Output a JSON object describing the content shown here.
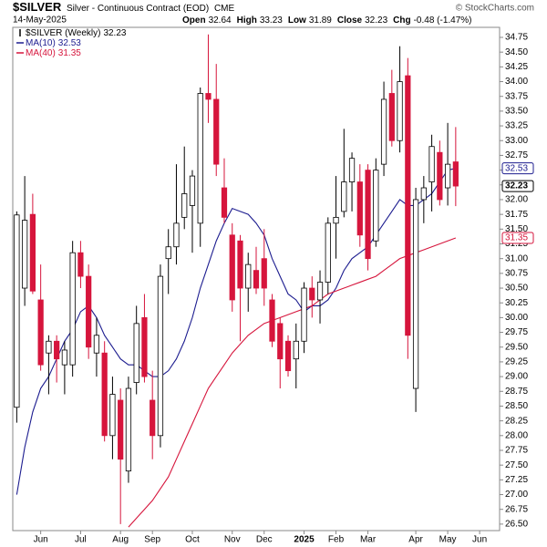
{
  "chart_data": {
    "type": "candlestick",
    "title": "$SILVER",
    "subtitle": "Silver - Continuous Contract (EOD)",
    "exchange": "CME",
    "date": "14-May-2025",
    "credit": "© StockCharts.com",
    "stats": [
      {
        "label": "Open",
        "value": "32.64"
      },
      {
        "label": "High",
        "value": "33.23"
      },
      {
        "label": "Low",
        "value": "31.89"
      },
      {
        "label": "Close",
        "value": "32.23"
      },
      {
        "label": "Chg",
        "value": "-0.48 (-1.47%)"
      }
    ],
    "categories": [
      null,
      null,
      null,
      "Jun",
      null,
      null,
      null,
      null,
      "Jul",
      null,
      null,
      null,
      null,
      "Aug",
      null,
      null,
      null,
      "Sep",
      null,
      null,
      null,
      null,
      "Oct",
      null,
      null,
      null,
      null,
      "Nov",
      null,
      null,
      null,
      "Dec",
      null,
      null,
      null,
      null,
      "2025",
      null,
      null,
      null,
      "Feb",
      null,
      null,
      null,
      "Mar",
      null,
      null,
      null,
      null,
      null,
      "Apr",
      null,
      null,
      null,
      "May",
      null,
      null,
      null,
      "Jun",
      null,
      null
    ],
    "ohlc": {
      "name": "$SILVER (Weekly)",
      "last": 32.23,
      "up_color": "#ffffff",
      "down_color": "#d6153c",
      "open": [
        28.48,
        30.5,
        31.75,
        30.3,
        29.4,
        29.6,
        29.2,
        29.2,
        31.1,
        30.7,
        29.4,
        29.4,
        28.0,
        28.6,
        27.4,
        28.9,
        30.0,
        28.6,
        28.0,
        31.0,
        31.2,
        31.7,
        31.9,
        31.6,
        33.8,
        33.7,
        32.2,
        31.4,
        31.3,
        30.5,
        30.8,
        31.0,
        30.3,
        29.9,
        29.6,
        29.3,
        29.6,
        30.5,
        30.3,
        30.6,
        31.6,
        31.8,
        32.3,
        32.3,
        32.5,
        31.3,
        32.6,
        33.8,
        33.0,
        34.1,
        28.8,
        32.0,
        32.3,
        32.8,
        32.2,
        32.64,
        null,
        null,
        null,
        null,
        null
      ],
      "high": [
        31.8,
        32.4,
        32.1,
        30.9,
        29.7,
        29.7,
        29.6,
        31.3,
        31.3,
        30.9,
        30.0,
        29.6,
        29.0,
        28.8,
        29.0,
        30.2,
        30.4,
        29.1,
        30.9,
        31.5,
        32.6,
        32.9,
        32.5,
        33.9,
        34.8,
        34.3,
        32.7,
        31.6,
        31.4,
        31.1,
        31.2,
        31.5,
        30.4,
        30.0,
        29.7,
        29.9,
        30.6,
        30.7,
        30.8,
        31.7,
        32.4,
        33.2,
        32.8,
        32.6,
        32.6,
        32.7,
        34.0,
        34.2,
        34.6,
        34.4,
        32.2,
        32.4,
        33.1,
        33.0,
        33.3,
        33.23,
        null,
        null,
        null,
        null,
        null
      ],
      "low": [
        28.22,
        30.2,
        30.4,
        29.1,
        28.7,
        28.9,
        28.7,
        29.0,
        30.5,
        29.3,
        29.0,
        27.9,
        27.6,
        26.5,
        27.2,
        28.7,
        28.9,
        27.6,
        27.8,
        30.4,
        30.9,
        31.5,
        31.1,
        31.2,
        33.3,
        32.4,
        31.6,
        30.1,
        29.6,
        30.1,
        30.4,
        30.2,
        29.5,
        28.8,
        29.0,
        28.8,
        29.4,
        30.0,
        29.9,
        30.4,
        31.0,
        31.7,
        31.8,
        31.2,
        30.8,
        31.2,
        32.4,
        32.9,
        32.8,
        29.3,
        28.4,
        31.6,
        31.8,
        31.9,
        31.9,
        31.89,
        null,
        null,
        null,
        null,
        null
      ],
      "close": [
        31.74,
        31.65,
        30.45,
        29.2,
        29.6,
        29.3,
        29.45,
        31.1,
        30.7,
        29.5,
        29.7,
        28.0,
        28.7,
        27.6,
        28.8,
        29.9,
        29.0,
        28.0,
        30.7,
        31.2,
        31.6,
        32.1,
        32.4,
        33.8,
        33.7,
        32.6,
        31.7,
        30.3,
        30.5,
        30.9,
        30.5,
        30.5,
        29.6,
        29.3,
        29.1,
        29.6,
        30.5,
        30.3,
        30.6,
        31.6,
        31.7,
        32.3,
        32.7,
        31.4,
        31.0,
        32.5,
        33.7,
        33.0,
        34.0,
        29.7,
        32.0,
        32.2,
        32.9,
        32.0,
        32.6,
        32.23,
        null,
        null,
        null,
        null,
        null
      ]
    },
    "series": [
      {
        "name": "MA(10)",
        "color": "#1c1c8f",
        "last": 32.53,
        "values": [
          27.0,
          27.8,
          28.4,
          28.8,
          29.0,
          29.3,
          29.6,
          29.8,
          30.1,
          30.2,
          30.0,
          29.7,
          29.5,
          29.3,
          29.2,
          29.2,
          29.1,
          29.0,
          29.0,
          29.1,
          29.3,
          29.6,
          30.0,
          30.5,
          30.9,
          31.3,
          31.6,
          31.85,
          31.8,
          31.75,
          31.6,
          31.4,
          31.0,
          30.7,
          30.4,
          30.3,
          30.1,
          30.2,
          30.2,
          30.3,
          30.5,
          30.8,
          31.0,
          31.1,
          31.2,
          31.4,
          31.6,
          31.8,
          32.0,
          31.9,
          31.9,
          32.0,
          32.1,
          32.3,
          32.5,
          32.53,
          null,
          null,
          null,
          null,
          null
        ]
      },
      {
        "name": "MA(40)",
        "color": "#d6153c",
        "last": 31.35,
        "values": [
          null,
          null,
          null,
          null,
          null,
          null,
          null,
          null,
          null,
          null,
          null,
          null,
          null,
          null,
          26.45,
          26.6,
          26.75,
          26.9,
          27.1,
          27.3,
          27.6,
          27.9,
          28.2,
          28.5,
          28.8,
          29.0,
          29.2,
          29.4,
          29.55,
          29.7,
          29.8,
          29.9,
          29.95,
          30.0,
          30.05,
          30.1,
          30.15,
          30.2,
          30.3,
          30.4,
          30.45,
          30.5,
          30.55,
          30.6,
          30.65,
          30.7,
          30.8,
          30.9,
          31.0,
          31.05,
          31.1,
          31.15,
          31.2,
          31.25,
          31.3,
          31.35,
          null,
          null,
          null,
          null,
          null
        ]
      }
    ],
    "ylim": [
      26.39,
      34.92
    ],
    "yticks": [
      {
        "value": 26.5,
        "label": "26.50"
      },
      {
        "value": 26.75,
        "label": "26.75"
      },
      {
        "value": 27,
        "label": "27.00"
      },
      {
        "value": 27.25,
        "label": "27.25"
      },
      {
        "value": 27.5,
        "label": "27.50"
      },
      {
        "value": 27.75,
        "label": "27.75"
      },
      {
        "value": 28,
        "label": "28.00"
      },
      {
        "value": 28.25,
        "label": "28.25"
      },
      {
        "value": 28.5,
        "label": "28.50"
      },
      {
        "value": 28.75,
        "label": "28.75"
      },
      {
        "value": 29,
        "label": "29.00"
      },
      {
        "value": 29.25,
        "label": "29.25"
      },
      {
        "value": 29.5,
        "label": "29.50"
      },
      {
        "value": 29.75,
        "label": "29.75"
      },
      {
        "value": 30,
        "label": "30.00"
      },
      {
        "value": 30.25,
        "label": "30.25"
      },
      {
        "value": 30.5,
        "label": "30.50"
      },
      {
        "value": 30.75,
        "label": "30.75"
      },
      {
        "value": 31,
        "label": "31.00"
      },
      {
        "value": 31.25,
        "label": "31.25"
      },
      {
        "value": 31.5,
        "label": "31.50"
      },
      {
        "value": 31.75,
        "label": "31.75"
      },
      {
        "value": 32,
        "label": "32.00"
      },
      {
        "value": 32.25,
        "label": "32.25"
      },
      {
        "value": 32.5,
        "label": "32.50"
      },
      {
        "value": 32.75,
        "label": "32.75"
      },
      {
        "value": 33,
        "label": "33.00"
      },
      {
        "value": 33.25,
        "label": "33.25"
      },
      {
        "value": 33.5,
        "label": "33.50"
      },
      {
        "value": 33.75,
        "label": "33.75"
      },
      {
        "value": 34,
        "label": "34.00"
      },
      {
        "value": 34.25,
        "label": "34.25"
      },
      {
        "value": 34.5,
        "label": "34.50"
      },
      {
        "value": 34.75,
        "label": "34.75"
      }
    ],
    "grid": false
  }
}
